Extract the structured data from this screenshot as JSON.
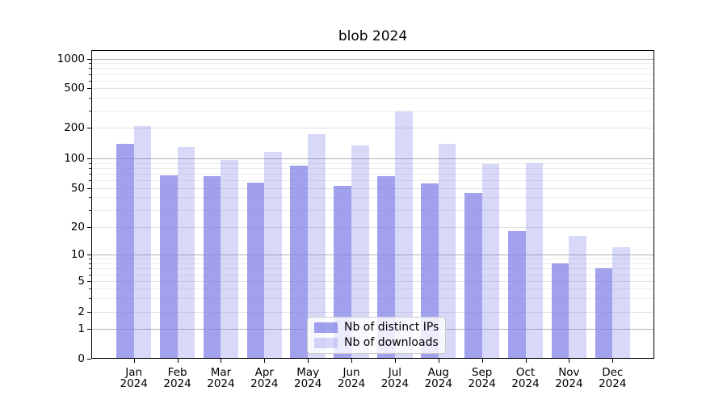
{
  "figure": {
    "title": "blob 2024"
  },
  "chart_data": {
    "type": "bar",
    "title": "blob 2024",
    "xlabel": "",
    "ylabel": "",
    "yscale": "symlog-like (log decades above 10, compressed toward 0 baseline)",
    "ylim": [
      0,
      1200
    ],
    "grid": true,
    "legend_position": "lower center",
    "categories": [
      "Jan",
      "Feb",
      "Mar",
      "Apr",
      "May",
      "Jun",
      "Jul",
      "Aug",
      "Sep",
      "Oct",
      "Nov",
      "Dec"
    ],
    "year_line": "2024",
    "y_ticks": [
      0,
      1,
      2,
      5,
      10,
      20,
      50,
      100,
      200,
      500,
      1000
    ],
    "y_major_ticks": [
      1,
      10,
      100,
      1000
    ],
    "y_minor_gridlines": [
      3,
      4,
      6,
      7,
      8,
      9,
      30,
      40,
      60,
      70,
      80,
      90,
      300,
      400,
      600,
      700,
      800,
      900
    ],
    "series": [
      {
        "name": "Nb of distinct IPs",
        "base_color": "#7d7de8",
        "alpha": 0.72,
        "rendered_color": "rgba(125,125,232,0.72)",
        "values": [
          140,
          67,
          66,
          57,
          85,
          53,
          66,
          56,
          44,
          18,
          8,
          7
        ]
      },
      {
        "name": "Nb of downloads",
        "base_color": "#7d7de8",
        "alpha": 0.3,
        "rendered_color": "rgba(125,125,232,0.30)",
        "values": [
          210,
          130,
          97,
          115,
          175,
          133,
          295,
          138,
          88,
          90,
          16,
          12
        ]
      }
    ]
  }
}
